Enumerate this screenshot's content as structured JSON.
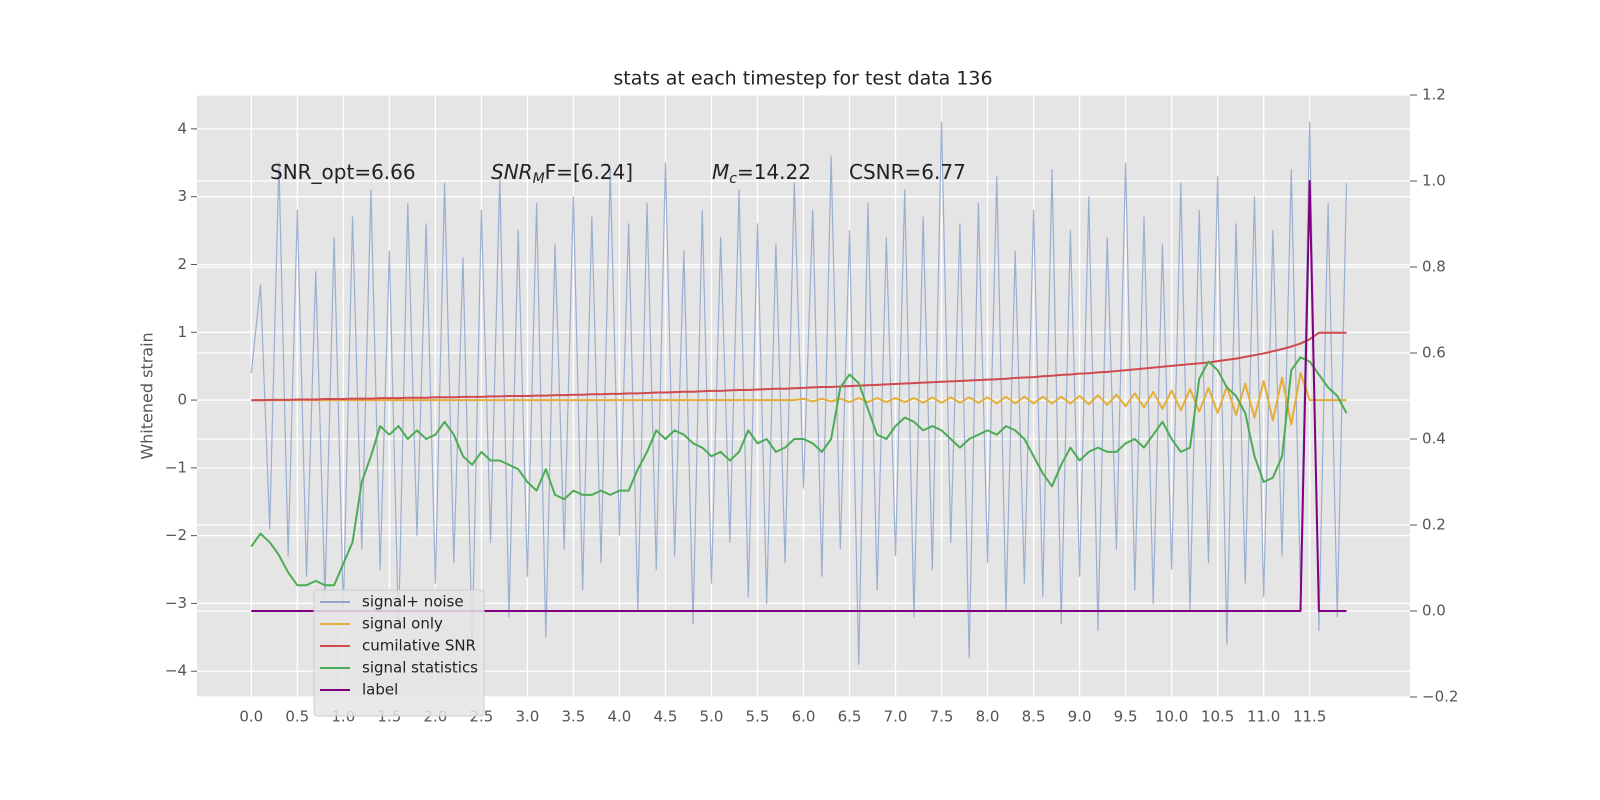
{
  "chart_data": {
    "type": "line",
    "title": "stats at each timestep for test data 136",
    "ylabel": "Whitened strain",
    "annotations": [
      {
        "text": "SNR_opt=6.66"
      },
      {
        "base": "SNR",
        "sub": "M",
        "text": "F=[6.24]"
      },
      {
        "base": "M",
        "sub": "c",
        "text": "=14.22"
      },
      {
        "text": "CSNR=6.77"
      }
    ],
    "x": [
      0.0,
      0.1,
      0.2,
      0.3,
      0.4,
      0.5,
      0.6,
      0.7,
      0.8,
      0.9,
      1.0,
      1.1,
      1.2,
      1.3,
      1.4,
      1.5,
      1.6,
      1.7,
      1.8,
      1.9,
      2.0,
      2.1,
      2.2,
      2.3,
      2.4,
      2.5,
      2.6,
      2.7,
      2.8,
      2.9,
      3.0,
      3.1,
      3.2,
      3.3,
      3.4,
      3.5,
      3.6,
      3.7,
      3.8,
      3.9,
      4.0,
      4.1,
      4.2,
      4.3,
      4.4,
      4.5,
      4.6,
      4.7,
      4.8,
      4.9,
      5.0,
      5.1,
      5.2,
      5.3,
      5.4,
      5.5,
      5.6,
      5.7,
      5.8,
      5.9,
      6.0,
      6.1,
      6.2,
      6.3,
      6.4,
      6.5,
      6.6,
      6.7,
      6.8,
      6.9,
      7.0,
      7.1,
      7.2,
      7.3,
      7.4,
      7.5,
      7.6,
      7.7,
      7.8,
      7.9,
      8.0,
      8.1,
      8.2,
      8.3,
      8.4,
      8.5,
      8.6,
      8.7,
      8.8,
      8.9,
      9.0,
      9.1,
      9.2,
      9.3,
      9.4,
      9.5,
      9.6,
      9.7,
      9.8,
      9.9,
      10.0,
      10.1,
      10.2,
      10.3,
      10.4,
      10.5,
      10.6,
      10.7,
      10.8,
      10.9,
      11.0,
      11.1,
      11.2,
      11.3,
      11.4,
      11.5,
      11.6,
      11.7,
      11.8,
      11.9
    ],
    "series": [
      {
        "name": "signal+ noise",
        "color": "#8ea4cc",
        "axis": "y",
        "values": [
          0.4,
          1.7,
          -1.9,
          3.5,
          -2.3,
          2.8,
          -2.6,
          1.9,
          -2.9,
          2.4,
          -3.1,
          2.7,
          -2.2,
          3.1,
          -2.5,
          2.2,
          -3.4,
          2.9,
          -2.0,
          2.6,
          -2.7,
          3.2,
          -2.4,
          2.1,
          -3.6,
          2.8,
          -2.1,
          3.3,
          -3.2,
          2.5,
          -2.6,
          2.9,
          -3.5,
          2.3,
          -2.2,
          3.0,
          -2.8,
          2.7,
          -2.4,
          3.4,
          -2.0,
          2.6,
          -3.1,
          2.9,
          -2.5,
          3.5,
          -2.3,
          2.2,
          -3.3,
          2.8,
          -2.7,
          2.4,
          -2.1,
          3.1,
          -2.9,
          2.6,
          -3.0,
          2.3,
          -2.4,
          3.2,
          -1.3,
          2.8,
          -2.6,
          3.6,
          -2.2,
          2.5,
          -3.9,
          2.9,
          -2.8,
          2.4,
          -2.3,
          3.1,
          -3.2,
          2.7,
          -2.5,
          4.1,
          -2.1,
          2.6,
          -3.8,
          2.9,
          -2.4,
          3.3,
          -3.1,
          2.2,
          -2.7,
          2.8,
          -2.9,
          3.4,
          -3.3,
          2.5,
          -2.6,
          3.0,
          -3.4,
          2.4,
          -2.2,
          3.5,
          -2.8,
          2.7,
          -3.0,
          2.3,
          -2.5,
          3.2,
          -3.1,
          2.8,
          -2.4,
          3.3,
          -3.6,
          2.6,
          -2.7,
          3.0,
          -2.9,
          2.5,
          -2.3,
          3.4,
          -2.8,
          4.1,
          -3.4,
          2.9,
          -3.2,
          3.2
        ]
      },
      {
        "name": "signal only",
        "color": "#e5ae38",
        "axis": "y",
        "values": [
          0,
          0,
          0,
          0,
          0,
          0,
          0,
          0,
          0,
          0,
          0,
          0,
          0,
          0,
          0,
          0,
          0,
          0,
          0,
          0,
          0,
          0,
          0,
          0,
          0,
          0,
          0,
          0,
          0,
          0,
          0,
          0,
          0,
          0,
          0,
          0,
          0,
          0,
          0,
          0,
          0,
          0,
          0,
          0,
          0,
          0,
          0,
          0,
          0,
          0,
          0,
          0,
          0,
          0,
          0,
          0,
          0,
          0,
          0,
          0,
          0.02,
          -0.02,
          0.02,
          -0.02,
          0.02,
          -0.03,
          0.03,
          -0.03,
          0.03,
          -0.03,
          0.03,
          -0.03,
          0.03,
          -0.04,
          0.04,
          -0.04,
          0.04,
          -0.04,
          0.04,
          -0.04,
          0.04,
          -0.05,
          0.05,
          -0.05,
          0.05,
          -0.05,
          0.05,
          -0.05,
          0.05,
          -0.05,
          0.06,
          -0.06,
          0.07,
          -0.07,
          0.08,
          -0.09,
          0.1,
          -0.11,
          0.12,
          -0.13,
          0.14,
          -0.15,
          0.16,
          -0.17,
          0.18,
          -0.19,
          0.2,
          -0.22,
          0.24,
          -0.26,
          0.28,
          -0.3,
          0.33,
          -0.36,
          0.4,
          0,
          0,
          0,
          0,
          0
        ]
      },
      {
        "name": "cumilative SNR",
        "color": "#d0494f",
        "axis": "y2",
        "values": [
          0.49,
          0.49,
          0.491,
          0.491,
          0.491,
          0.492,
          0.492,
          0.492,
          0.493,
          0.493,
          0.493,
          0.494,
          0.494,
          0.494,
          0.495,
          0.495,
          0.495,
          0.496,
          0.496,
          0.496,
          0.497,
          0.497,
          0.497,
          0.498,
          0.498,
          0.498,
          0.499,
          0.499,
          0.5,
          0.5,
          0.5,
          0.501,
          0.501,
          0.502,
          0.502,
          0.503,
          0.503,
          0.504,
          0.504,
          0.505,
          0.505,
          0.506,
          0.506,
          0.507,
          0.508,
          0.508,
          0.509,
          0.51,
          0.51,
          0.511,
          0.512,
          0.512,
          0.513,
          0.514,
          0.514,
          0.515,
          0.516,
          0.517,
          0.517,
          0.518,
          0.519,
          0.52,
          0.521,
          0.521,
          0.522,
          0.523,
          0.524,
          0.525,
          0.526,
          0.527,
          0.528,
          0.529,
          0.53,
          0.531,
          0.532,
          0.533,
          0.534,
          0.535,
          0.536,
          0.537,
          0.538,
          0.539,
          0.54,
          0.542,
          0.543,
          0.544,
          0.546,
          0.547,
          0.549,
          0.55,
          0.552,
          0.553,
          0.555,
          0.556,
          0.558,
          0.56,
          0.562,
          0.564,
          0.566,
          0.568,
          0.57,
          0.572,
          0.574,
          0.576,
          0.578,
          0.581,
          0.584,
          0.587,
          0.591,
          0.595,
          0.599,
          0.604,
          0.609,
          0.615,
          0.622,
          0.632,
          0.647,
          0.647,
          0.647,
          0.647
        ]
      },
      {
        "name": "signal statistics",
        "color": "#4dab55",
        "axis": "y2",
        "values": [
          0.15,
          0.18,
          0.16,
          0.13,
          0.09,
          0.06,
          0.06,
          0.07,
          0.06,
          0.06,
          0.11,
          0.16,
          0.3,
          0.36,
          0.43,
          0.41,
          0.43,
          0.4,
          0.42,
          0.4,
          0.41,
          0.44,
          0.41,
          0.36,
          0.34,
          0.37,
          0.35,
          0.35,
          0.34,
          0.33,
          0.3,
          0.28,
          0.33,
          0.27,
          0.26,
          0.28,
          0.27,
          0.27,
          0.28,
          0.27,
          0.28,
          0.28,
          0.33,
          0.37,
          0.42,
          0.4,
          0.42,
          0.41,
          0.39,
          0.38,
          0.36,
          0.37,
          0.35,
          0.37,
          0.42,
          0.39,
          0.4,
          0.37,
          0.38,
          0.4,
          0.4,
          0.39,
          0.37,
          0.4,
          0.52,
          0.55,
          0.53,
          0.47,
          0.41,
          0.4,
          0.43,
          0.45,
          0.44,
          0.42,
          0.43,
          0.42,
          0.4,
          0.38,
          0.4,
          0.41,
          0.42,
          0.41,
          0.43,
          0.42,
          0.4,
          0.36,
          0.32,
          0.29,
          0.34,
          0.38,
          0.35,
          0.37,
          0.38,
          0.37,
          0.37,
          0.39,
          0.4,
          0.38,
          0.41,
          0.44,
          0.4,
          0.37,
          0.38,
          0.54,
          0.58,
          0.56,
          0.52,
          0.5,
          0.46,
          0.36,
          0.3,
          0.31,
          0.36,
          0.56,
          0.59,
          0.58,
          0.55,
          0.52,
          0.5,
          0.46
        ]
      },
      {
        "name": "label",
        "color": "#800080",
        "axis": "y2",
        "values": [
          0,
          0,
          0,
          0,
          0,
          0,
          0,
          0,
          0,
          0,
          0,
          0,
          0,
          0,
          0,
          0,
          0,
          0,
          0,
          0,
          0,
          0,
          0,
          0,
          0,
          0,
          0,
          0,
          0,
          0,
          0,
          0,
          0,
          0,
          0,
          0,
          0,
          0,
          0,
          0,
          0,
          0,
          0,
          0,
          0,
          0,
          0,
          0,
          0,
          0,
          0,
          0,
          0,
          0,
          0,
          0,
          0,
          0,
          0,
          0,
          0,
          0,
          0,
          0,
          0,
          0,
          0,
          0,
          0,
          0,
          0,
          0,
          0,
          0,
          0,
          0,
          0,
          0,
          0,
          0,
          0,
          0,
          0,
          0,
          0,
          0,
          0,
          0,
          0,
          0,
          0,
          0,
          0,
          0,
          0,
          0,
          0,
          0,
          0,
          0,
          0,
          0,
          0,
          0,
          0,
          0,
          0,
          0,
          0,
          0,
          0,
          0,
          0,
          0,
          0,
          1,
          0,
          0,
          0,
          0
        ]
      }
    ],
    "xlim": [
      -0.59,
      12.59
    ],
    "xticks": [
      {
        "value": 0,
        "label": "0.0"
      },
      0.5,
      {
        "value": 1,
        "label": "1.0"
      },
      1.5,
      {
        "value": 2,
        "label": "2.0"
      },
      2.5,
      {
        "value": 3,
        "label": "3.0"
      },
      3.5,
      {
        "value": 4,
        "label": "4.0"
      },
      4.5,
      {
        "value": 5,
        "label": "5.0"
      },
      5.5,
      {
        "value": 6,
        "label": "6.0"
      },
      6.5,
      {
        "value": 7,
        "label": "7.0"
      },
      7.5,
      {
        "value": 8,
        "label": "8.0"
      },
      8.5,
      {
        "value": 9,
        "label": "9.0"
      },
      9.5,
      {
        "value": 10,
        "label": "10.0"
      },
      10.5,
      {
        "value": 11,
        "label": "11.0"
      },
      11.5
    ],
    "ylim": [
      -4.38,
      4.5
    ],
    "yticks": [
      {
        "value": -4,
        "label": "−4"
      },
      {
        "value": -3,
        "label": "−3"
      },
      {
        "value": -2,
        "label": "−2"
      },
      {
        "value": -1,
        "label": "−1"
      },
      0,
      1,
      2,
      3,
      4
    ],
    "y2lim": [
      -0.2,
      1.2
    ],
    "y2ticks": [
      {
        "value": -0.2,
        "label": "−0.2"
      },
      {
        "value": 0,
        "label": "0.0"
      },
      0.2,
      0.4,
      0.6,
      0.8,
      {
        "value": 1,
        "label": "1.0"
      },
      1.2
    ],
    "grid": true,
    "legend": "lower left"
  }
}
